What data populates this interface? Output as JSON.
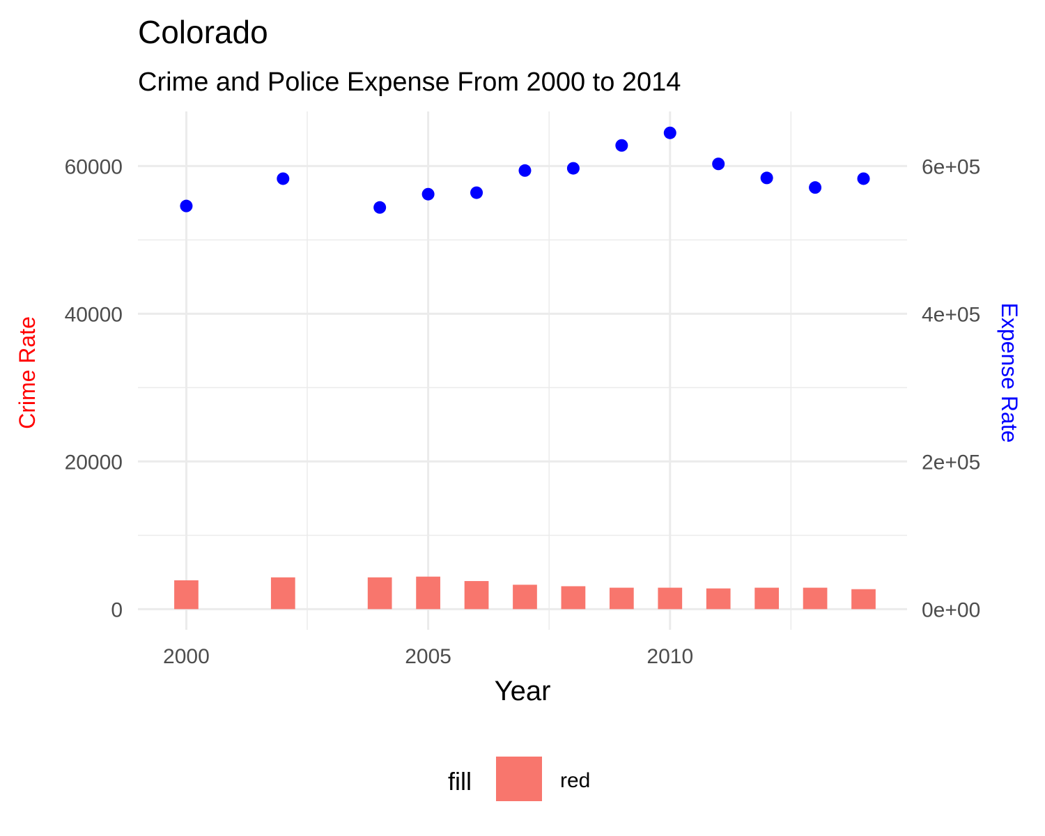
{
  "chart_data": {
    "type": "bar",
    "title": "Colorado",
    "subtitle": "Crime and Police Expense From 2000 to 2014",
    "xlabel": "Year",
    "ylabel": "Crime Rate",
    "ylabel_right": "Expense Rate",
    "ylabel_color": "#ff0000",
    "ylabel_right_color": "#0000ff",
    "x_ticks": [
      "2000",
      "2005",
      "2010"
    ],
    "x_tick_values": [
      2000,
      2005,
      2010
    ],
    "xlim": [
      1999,
      2014.9
    ],
    "y_ticks_left": [
      "0",
      "20000",
      "40000",
      "60000"
    ],
    "y_tick_values_left": [
      0,
      20000,
      40000,
      60000
    ],
    "ylim": [
      -2800,
      67400
    ],
    "y_ticks_right": [
      "0e+00",
      "2e+05",
      "4e+05",
      "6e+05"
    ],
    "y_tick_values_right": [
      0,
      200000,
      400000,
      600000
    ],
    "ylim_right": [
      -28000,
      674000
    ],
    "grid": true,
    "legend_position": "bottom",
    "legend_title": "fill",
    "legend_label": "red",
    "bar_color": "#f8766d",
    "point_color": "#0000ff",
    "series": [
      {
        "type": "bar",
        "axis": "left",
        "x": [
          2000,
          2002,
          2004,
          2005,
          2006,
          2007,
          2008,
          2009,
          2010,
          2011,
          2012,
          2013,
          2014
        ],
        "values": [
          3900,
          4300,
          4300,
          4400,
          3800,
          3300,
          3100,
          2900,
          2900,
          2800,
          2900,
          2900,
          2700
        ]
      },
      {
        "type": "scatter",
        "axis": "right",
        "x": [
          2000,
          2002,
          2004,
          2005,
          2006,
          2007,
          2008,
          2009,
          2010,
          2011,
          2012,
          2013,
          2014
        ],
        "values": [
          546000,
          583000,
          544000,
          562000,
          564000,
          594000,
          597000,
          628000,
          645000,
          603000,
          584000,
          571000,
          583000
        ]
      }
    ]
  }
}
